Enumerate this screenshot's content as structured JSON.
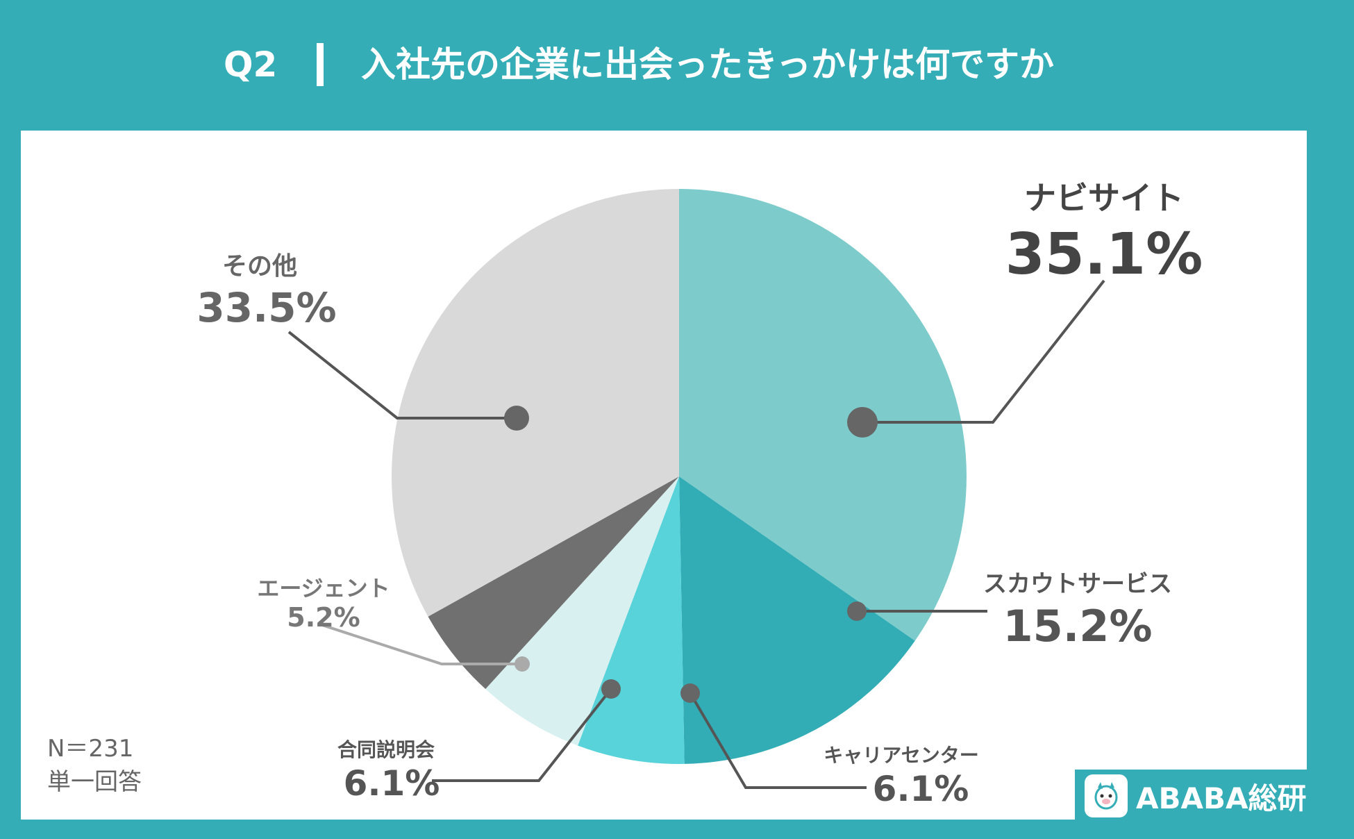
{
  "header": {
    "q_label": "Q2",
    "title": "入社先の企業に出会ったきっかけは何ですか"
  },
  "footnote": {
    "n": "N＝231",
    "type": "単一回答"
  },
  "logo": {
    "text": "ABABA総研",
    "icon": "alpaca-mascot-icon"
  },
  "colors": {
    "background": "#34adb6",
    "panel": "#ffffff",
    "text_dark": "#444444",
    "text_mid": "#666666",
    "leader_line": "#555555"
  },
  "chart_data": {
    "type": "pie",
    "title": "入社先の企業に出会ったきっかけは何ですか",
    "start": "12 o'clock",
    "direction": "clockwise",
    "legend": "none",
    "categories": [
      "ナビサイト",
      "スカウトサービス",
      "キャリアセンター",
      "合同説明会",
      "エージェント",
      "その他"
    ],
    "values": [
      35.1,
      15.2,
      6.1,
      6.1,
      5.2,
      33.5
    ],
    "value_labels": [
      "35.1%",
      "15.2%",
      "6.1%",
      "6.1%",
      "5.2%",
      "33.5%"
    ],
    "colors": [
      "#7ecbcb",
      "#32adb5",
      "#58d3da",
      "#d9f0f0",
      "#707070",
      "#d9d9d9"
    ]
  }
}
